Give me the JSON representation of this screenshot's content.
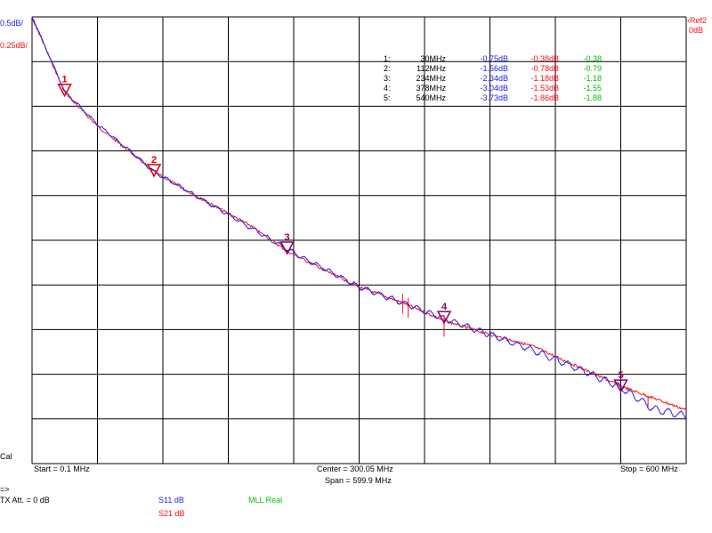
{
  "scale": {
    "s11_per_div": "0.5dB/",
    "s21_per_div": "0.25dB/",
    "ref_label": "Ref2",
    "ref_value": "0dB"
  },
  "status": {
    "cal": "Cal",
    "arrow": "=>",
    "tx_att": "TX Att.  = 0 dB",
    "s11_legend": "S11  dB",
    "s21_legend": "S21  dB",
    "mll_legend": "MLL Real"
  },
  "axis": {
    "start": "Start = 0.1 MHz",
    "center": "Center = 300.05 MHz",
    "span": "Span = 599.9 MHz",
    "stop": "Stop = 600 MHz"
  },
  "markers_table": [
    {
      "id": "1:",
      "freq": "30MHz",
      "s11": "-0.75dB",
      "s21": "-0.38dB",
      "mll": "-0.38"
    },
    {
      "id": "2:",
      "freq": "112MHz",
      "s11": "-1.56dB",
      "s21": "-0.78dB",
      "mll": "-0.79"
    },
    {
      "id": "3:",
      "freq": "234MHz",
      "s11": "-2.34dB",
      "s21": "-1.18dB",
      "mll": "-1.18"
    },
    {
      "id": "4:",
      "freq": "378MHz",
      "s11": "-3.04dB",
      "s21": "-1.53dB",
      "mll": "-1.55"
    },
    {
      "id": "5:",
      "freq": "540MHz",
      "s11": "-3.73dB",
      "s21": "-1.86dB",
      "mll": "-1.88"
    }
  ],
  "colors": {
    "s11": "#2020ff",
    "s21": "#ff1010",
    "mll": "#00c000",
    "marker_red": "#e00000",
    "marker_purple": "#8a0060",
    "grid": "#000000"
  },
  "chart_data": {
    "type": "line",
    "title": "",
    "xlabel": "",
    "ylabel": "",
    "xlim": [
      0.1,
      600
    ],
    "x_unit": "MHz",
    "grid": true,
    "series": [
      {
        "name": "S11  dB",
        "y_per_div_db": 0.5,
        "ylim": [
          -4.5,
          0
        ],
        "x": [
          0.1,
          30,
          60,
          90,
          112,
          150,
          200,
          234,
          270,
          300,
          340,
          378,
          420,
          460,
          500,
          540,
          570,
          600
        ],
        "values": [
          0,
          -0.75,
          -1.08,
          -1.35,
          -1.56,
          -1.8,
          -2.12,
          -2.34,
          -2.55,
          -2.72,
          -2.88,
          -3.04,
          -3.2,
          -3.36,
          -3.54,
          -3.73,
          -3.95,
          -4.02
        ]
      },
      {
        "name": "S21  dB",
        "y_per_div_db": 0.25,
        "ylim": [
          -2.25,
          0
        ],
        "x": [
          0.1,
          30,
          60,
          90,
          112,
          150,
          200,
          234,
          270,
          300,
          340,
          378,
          420,
          460,
          500,
          540,
          570,
          600
        ],
        "values": [
          0,
          -0.38,
          -0.55,
          -0.68,
          -0.78,
          -0.9,
          -1.05,
          -1.18,
          -1.28,
          -1.36,
          -1.44,
          -1.53,
          -1.6,
          -1.66,
          -1.76,
          -1.86,
          -1.92,
          -1.98
        ]
      }
    ],
    "markers": [
      {
        "label": "1",
        "x": 30,
        "s11": -0.75,
        "s21": -0.38
      },
      {
        "label": "2",
        "x": 112,
        "s11": -1.56,
        "s21": -0.78
      },
      {
        "label": "3",
        "x": 234,
        "s11": -2.34,
        "s21": -1.18
      },
      {
        "label": "4",
        "x": 378,
        "s11": -3.04,
        "s21": -1.53
      },
      {
        "label": "5",
        "x": 540,
        "s11": -3.73,
        "s21": -1.86
      }
    ]
  }
}
